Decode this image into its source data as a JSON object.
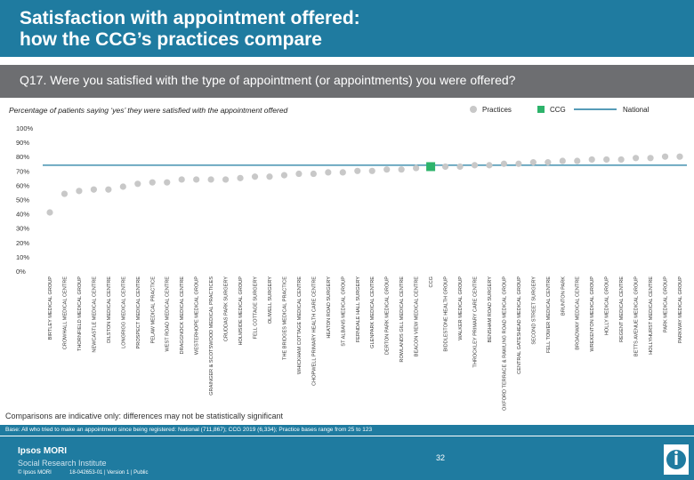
{
  "title": "Satisfaction with appointment offered:\nhow the CCG’s practices compare",
  "question": "Q17. Were you satisfied with the type of appointment (or appointments) you were offered?",
  "subtitle": "Percentage of patients saying ‘yes’ they were satisfied with the appointment offered",
  "legend": {
    "practices": "Practices",
    "ccg": "CCG",
    "national": "National"
  },
  "colors": {
    "header": "#1f7ba0",
    "question_bar": "#6d6e71",
    "practice_marker": "#c8c8c8",
    "ccg_marker": "#2db36b",
    "national_line": "#1f7ba0"
  },
  "chart_data": {
    "type": "scatter",
    "y_ticks": [
      "100%",
      "90%",
      "80%",
      "70%",
      "60%",
      "50%",
      "40%",
      "30%",
      "20%",
      "10%",
      "0%"
    ],
    "ylim": [
      0,
      100
    ],
    "national_value": 74,
    "categories": [
      "BIRTLEY MEDICAL GROUP",
      "CROWHALL MEDICAL CENTRE",
      "THORNFIELD MEDICAL GROUP",
      "NEWCASTLE MEDICAL CENTRE",
      "DILSTON MEDICAL CENTRE",
      "LONGRIGG MEDICAL CENTRE",
      "PROSPECT MEDICAL CENTRE",
      "PELAW MEDICAL PRACTICE",
      "WEST ROAD MEDICAL CENTRE",
      "DRAGGNOCK MEDICAL CENTRE",
      "WESTERHOPE MEDICAL GROUP",
      "GRAINGER & SCOTSWOOD MEDICAL PRACTICES",
      "CRUDDAS PARK SURGERY",
      "HOLMSIDE MEDICAL GROUP",
      "FELL COTTAGE SURGERY",
      "OLIWELL SURGERY",
      "THE BRIDGES MEDICAL PRACTICE",
      "WHICKHAM COTTAGE MEDICAL CENTRE",
      "CHOPWELL PRIMARY HEALTH CARE CENTRE",
      "HEATON ROAD SURGERY",
      "ST ALBANS MEDICAL GROUP",
      "FERNDALE HALL SURGERY",
      "GLENPARK MEDICAL CENTRE",
      "DERTON PARK MEDICAL GROUP",
      "ROWLANDS GILL MEDICAL CENTRE",
      "BEACON VIEW MEDICAL CENTRE",
      "CCG",
      "BIDDLESTONE HEALTH GROUP",
      "WALKER MEDICAL GROUP",
      "THROCKLEY PRIMARY CARE CENTRE",
      "BENSHAM ROAD SURGERY",
      "OXFORD TERRACE & RAWLING ROAD MEDICAL GROUP",
      "CENTRAL GATESHEAD MEDICAL GROUP",
      "SECOND STREET SURGERY",
      "FELL TOWER MEDICAL CENTRE",
      "BRUNTON PARK",
      "BROADWAY MEDICAL CENTRE",
      "WREKENTON MEDICAL GROUP",
      "HOLLY MEDICAL GROUP",
      "REGENT MEDICAL CENTRE",
      "BETTS AVENUE MEDICAL GROUP",
      "HOLLYHURST MEDICAL CENTRE",
      "PARK MEDICAL GROUP",
      "PARKWAY MEDICAL GROUP"
    ],
    "values": [
      41,
      54,
      56,
      57,
      57,
      59,
      61,
      62,
      62,
      64,
      64,
      64,
      64,
      65,
      66,
      66,
      67,
      68,
      68,
      69,
      69,
      70,
      70,
      71,
      71,
      72,
      73,
      73,
      73,
      74,
      74,
      75,
      75,
      76,
      76,
      77,
      77,
      78,
      78,
      78,
      79,
      79,
      80,
      80
    ],
    "ccg_index": 26,
    "xlabel": "",
    "ylabel": ""
  },
  "disclaimer": "Comparisons are indicative only: differences may not be statistically significant",
  "base_note": "Base: All who tried to make an appointment since being registered: National (711,867); CCG 2019 (6,334); Practice bases range from 25 to 123",
  "footer": {
    "logo_line1": "Ipsos MORI",
    "logo_line2": "Social Research Institute",
    "copyright": "© Ipsos MORI",
    "job_ref": "18-042653-01 | Version 1 | Public",
    "page_number": "32"
  }
}
